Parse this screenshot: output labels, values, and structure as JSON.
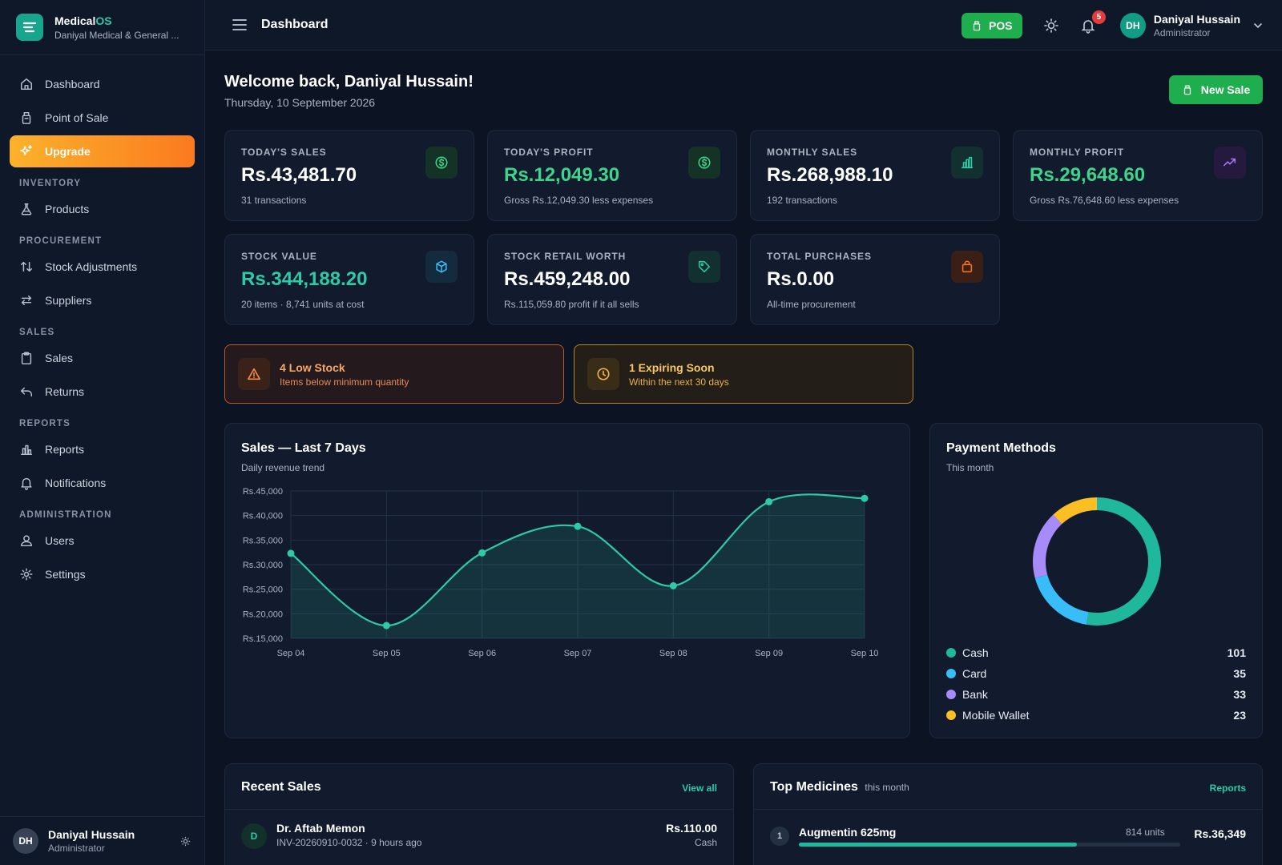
{
  "brand": {
    "name_main": "Medical",
    "name_accent": "OS",
    "subtitle": "Daniyal Medical & General ..."
  },
  "sidebar": {
    "items": [
      {
        "label": "Dashboard",
        "icon": "home-icon"
      },
      {
        "label": "Point of Sale",
        "icon": "register-icon"
      },
      {
        "label": "Upgrade",
        "icon": "sparkles-icon"
      }
    ],
    "groups": {
      "inventory": {
        "title": "INVENTORY",
        "items": [
          {
            "label": "Products",
            "icon": "flask-icon"
          }
        ]
      },
      "procurement": {
        "title": "PROCUREMENT",
        "items": [
          {
            "label": "Stock Adjustments",
            "icon": "arrows-updown-icon"
          },
          {
            "label": "Suppliers",
            "icon": "arrows-leftright-icon"
          }
        ]
      },
      "sales": {
        "title": "SALES",
        "items": [
          {
            "label": "Sales",
            "icon": "clipboard-icon"
          },
          {
            "label": "Returns",
            "icon": "undo-icon"
          }
        ]
      },
      "reports": {
        "title": "REPORTS",
        "items": [
          {
            "label": "Reports",
            "icon": "bar-chart-icon"
          },
          {
            "label": "Notifications",
            "icon": "bell-icon"
          }
        ]
      },
      "administration": {
        "title": "ADMINISTRATION",
        "items": [
          {
            "label": "Users",
            "icon": "users-icon"
          },
          {
            "label": "Settings",
            "icon": "gear-icon"
          }
        ]
      }
    },
    "user": {
      "initials": "DH",
      "name": "Daniyal Hussain",
      "role": "Administrator"
    }
  },
  "header": {
    "title": "Dashboard",
    "pos_label": "POS",
    "notification_count": "5",
    "user": {
      "initials": "DH",
      "name": "Daniyal Hussain",
      "role": "Administrator"
    }
  },
  "welcome": {
    "title": "Welcome back, Daniyal Hussain!",
    "date": "Thursday, 10 September 2026",
    "new_sale_label": "New Sale"
  },
  "stats": [
    {
      "label": "TODAY'S SALES",
      "value": "Rs.43,481.70",
      "sub": "31 transactions",
      "icon": "dollar-circle-icon",
      "accent": "#3ed48a"
    },
    {
      "label": "TODAY'S PROFIT",
      "value": "Rs.12,049.30",
      "sub": "Gross Rs.12,049.30 less expenses",
      "icon": "dollar-circle-icon",
      "accent": "#3ed48a"
    },
    {
      "label": "MONTHLY SALES",
      "value": "Rs.268,988.10",
      "sub": "192 transactions",
      "icon": "bar-chart-icon",
      "accent": "#2ec9a5"
    },
    {
      "label": "MONTHLY PROFIT",
      "value": "Rs.29,648.60",
      "sub": "Gross Rs.76,648.60 less expenses",
      "icon": "trending-up-icon",
      "accent": "#a879f5"
    },
    {
      "label": "STOCK VALUE",
      "value": "Rs.344,188.20",
      "sub": "20 items · 8,741 units at cost",
      "icon": "box-icon",
      "accent": "#38bdf8"
    },
    {
      "label": "STOCK RETAIL WORTH",
      "value": "Rs.459,248.00",
      "sub": "Rs.115,059.80 profit if it all sells",
      "icon": "tag-icon",
      "accent": "#2ec9a5"
    },
    {
      "label": "TOTAL PURCHASES",
      "value": "Rs.0.00",
      "sub": "All-time procurement",
      "icon": "shopping-bag-icon",
      "accent": "#f97316"
    }
  ],
  "alerts": {
    "low_stock": {
      "title": "4 Low Stock",
      "sub": "Items below minimum quantity",
      "color": "#f08a4b"
    },
    "expiring": {
      "title": "1 Expiring Soon",
      "sub": "Within the next 30 days",
      "color": "#f5b642"
    }
  },
  "sales_chart": {
    "title": "Sales — Last 7 Days",
    "subtitle": "Daily revenue trend",
    "chart_data": {
      "type": "area",
      "categories": [
        "Sep 04",
        "Sep 05",
        "Sep 06",
        "Sep 07",
        "Sep 08",
        "Sep 09",
        "Sep 10"
      ],
      "values": [
        32300,
        17600,
        32400,
        37800,
        25700,
        42800,
        43500
      ],
      "ylim": [
        15000,
        45000
      ],
      "yticks": [
        "Rs.45,000",
        "Rs.40,000",
        "Rs.35,000",
        "Rs.30,000",
        "Rs.25,000",
        "Rs.20,000",
        "Rs.15,000"
      ],
      "ytick_values": [
        45000,
        40000,
        35000,
        30000,
        25000,
        20000,
        15000
      ],
      "grid": true,
      "color": "#2ec9a5"
    }
  },
  "payment_methods": {
    "title": "Payment Methods",
    "subtitle": "This month",
    "chart_data": {
      "type": "pie",
      "series": [
        {
          "name": "Cash",
          "value": 101,
          "color": "#1fb89c"
        },
        {
          "name": "Card",
          "value": 35,
          "color": "#38bdf8"
        },
        {
          "name": "Bank",
          "value": 33,
          "color": "#a78bfa"
        },
        {
          "name": "Mobile Wallet",
          "value": 23,
          "color": "#fbbf24"
        }
      ]
    }
  },
  "recent_sales": {
    "title": "Recent Sales",
    "view_all": "View all",
    "rows": [
      {
        "initial": "D",
        "name": "Dr. Aftab Memon",
        "meta": "INV-20260910-0032 · 9 hours ago",
        "amount": "Rs.110.00",
        "method": "Cash"
      }
    ]
  },
  "top_medicines": {
    "title": "Top Medicines",
    "title_suffix": "this month",
    "link": "Reports",
    "rows": [
      {
        "rank": "1",
        "name": "Augmentin 625mg",
        "units": "814 units",
        "amount": "Rs.36,349",
        "share": 0.73
      }
    ]
  }
}
